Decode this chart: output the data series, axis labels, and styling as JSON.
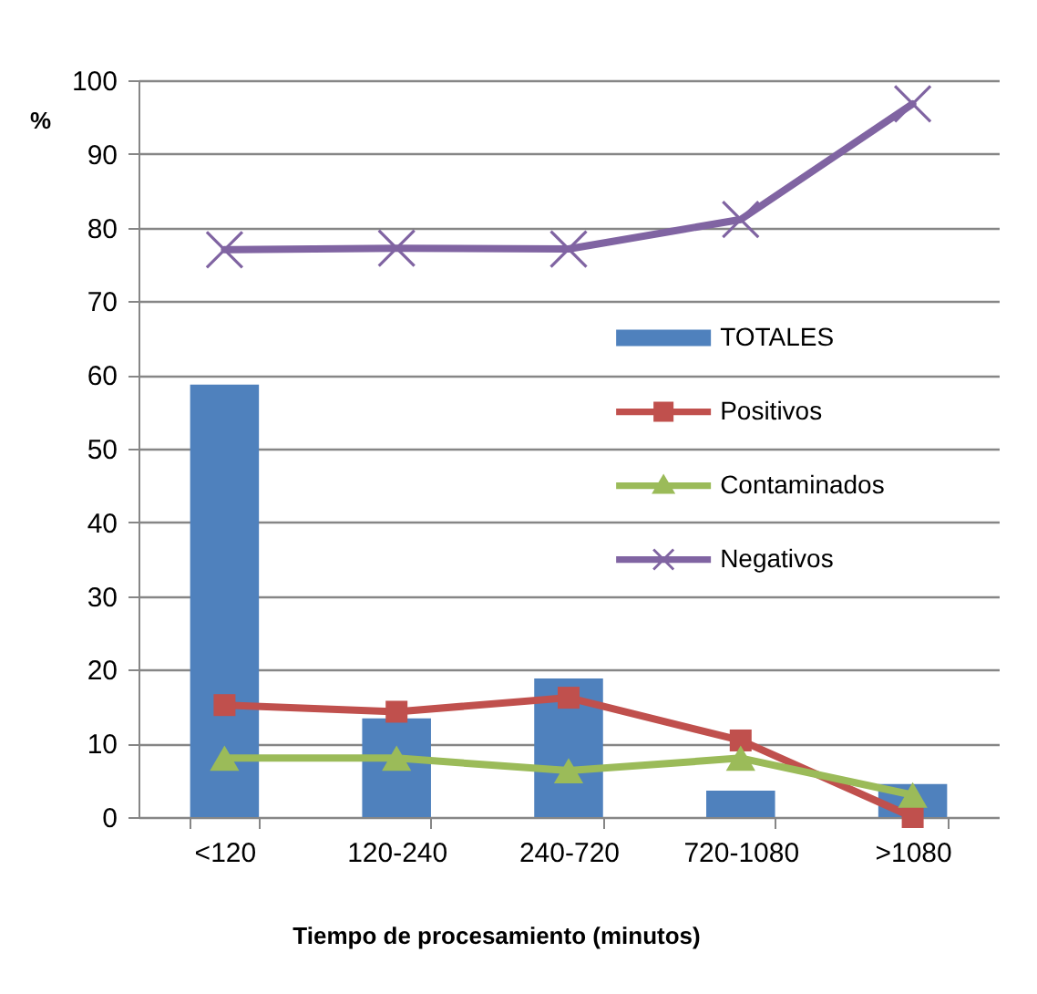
{
  "chart_data": {
    "type": "bar",
    "xlabel": "Tiempo de procesamiento (minutos)",
    "ylabel": "%",
    "categories": [
      "<120",
      "120-240",
      "240-720",
      "720-1080",
      ">1080"
    ],
    "series": [
      {
        "name": "TOTALES",
        "color": "#4f81bd",
        "values": [
          58.7,
          13.4,
          18.8,
          3.6,
          4.5
        ]
      },
      {
        "name": "Positivos",
        "type": "line",
        "marker": "square",
        "line_style": "solid",
        "color": "#c0504d",
        "values": [
          15.2,
          14.3,
          16.2,
          10.4,
          0
        ]
      },
      {
        "name": "Contaminados",
        "type": "line",
        "marker": "triangle",
        "line_style": "solid",
        "color": "#9bbb59",
        "values": [
          8.0,
          8.0,
          6.3,
          8.0,
          3.0
        ]
      },
      {
        "name": "Negativos",
        "type": "line",
        "marker": "cross",
        "line_style": "solid",
        "color": "#8064a2",
        "values": [
          77.0,
          77.2,
          77.1,
          81.1,
          96.8
        ]
      }
    ],
    "ylim": [
      0,
      100
    ],
    "yticks": [
      0,
      10,
      20,
      30,
      40,
      50,
      60,
      70,
      80,
      90,
      100
    ],
    "grid": "y",
    "legend": "right"
  }
}
